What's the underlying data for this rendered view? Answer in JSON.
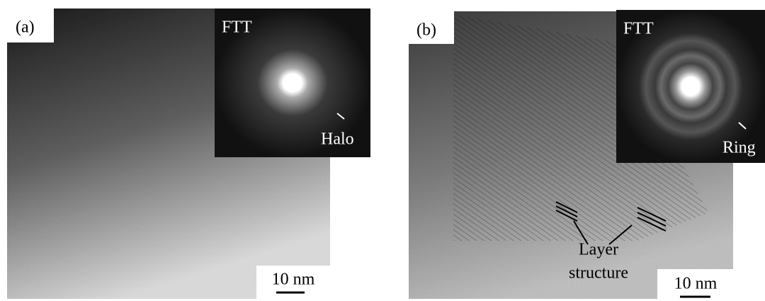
{
  "panels": [
    {
      "label": "(a)",
      "inset_label": "FTT",
      "inset_annotation": "Halo",
      "scale_bar": "10 nm"
    },
    {
      "label": "(b)",
      "inset_label": "FTT",
      "inset_annotation": "Ring",
      "scale_bar": "10 nm",
      "annotation_lines": [
        "Layer",
        "structure"
      ]
    }
  ]
}
